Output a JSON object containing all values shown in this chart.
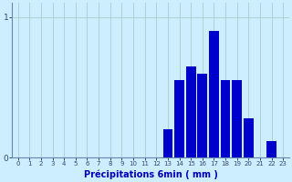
{
  "categories": [
    0,
    1,
    2,
    3,
    4,
    5,
    6,
    7,
    8,
    9,
    10,
    11,
    12,
    13,
    14,
    15,
    16,
    17,
    18,
    19,
    20,
    21,
    22,
    23
  ],
  "values": [
    0,
    0,
    0,
    0,
    0,
    0,
    0,
    0,
    0,
    0,
    0,
    0,
    0,
    0.2,
    0.55,
    0.65,
    0.6,
    0.9,
    0.55,
    0.55,
    0.28,
    0.0,
    0.12,
    0.0
  ],
  "bar_color": "#0000cc",
  "background_color": "#cceeff",
  "grid_color": "#aacccc",
  "axis_color": "#6688aa",
  "tick_color": "#334477",
  "xlabel": "Précipitations 6min ( mm )",
  "xlabel_color": "#0000bb",
  "ylim": [
    0,
    1.1
  ],
  "xlim": [
    -0.5,
    23.5
  ]
}
